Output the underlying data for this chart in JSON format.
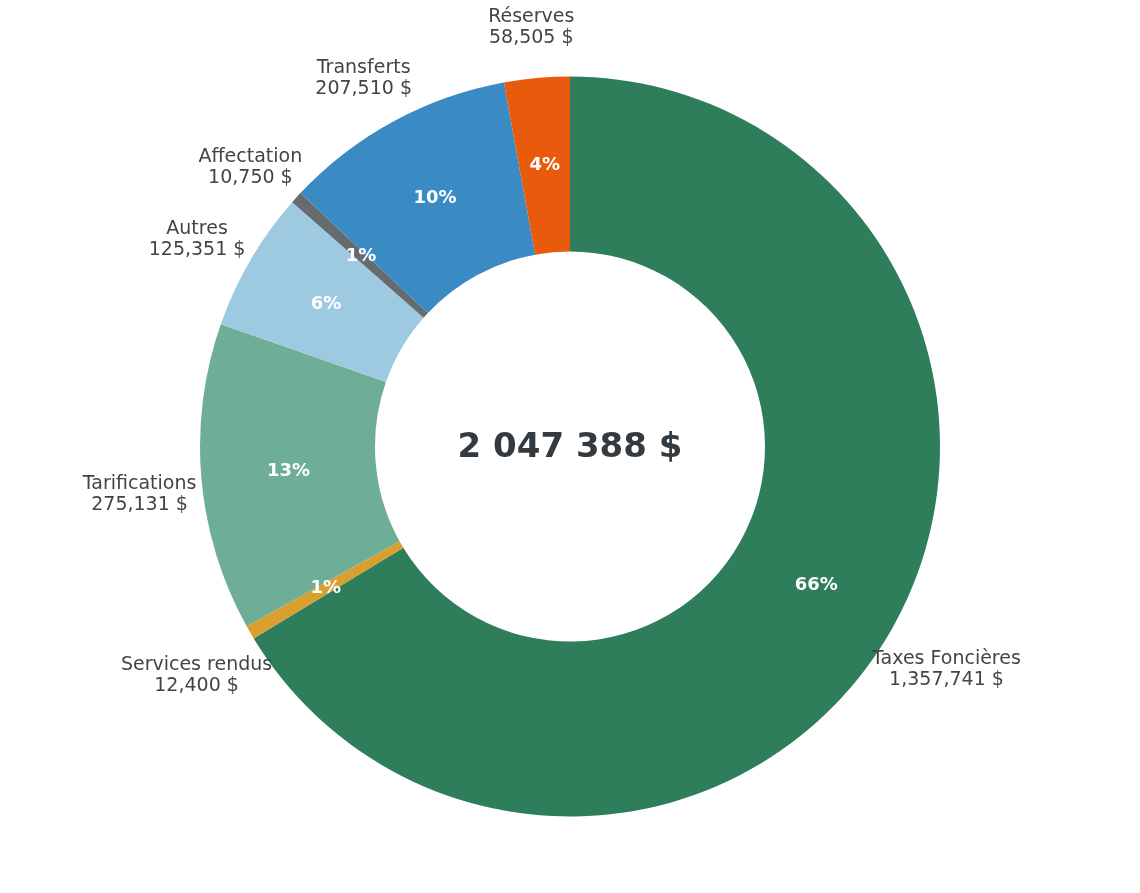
{
  "chart_data": {
    "type": "donut",
    "categories": [
      "Taxes Foncières",
      "Services rendus",
      "Tarifications",
      "Autres",
      "Affectation",
      "Transferts",
      "Réserves"
    ],
    "values": [
      1357741,
      12400,
      275131,
      125351,
      10750,
      207510,
      58505
    ],
    "value_labels": [
      "1,357,741 $",
      "12,400 $",
      "275,131 $",
      "125,351 $",
      "10,750 $",
      "207,510 $",
      "58,505 $"
    ],
    "colors": [
      "#2e7d5b",
      "#d9a030",
      "#6fae96",
      "#9ecae1",
      "#666b70",
      "#3a8ac4",
      "#e85a0c"
    ],
    "annotations": [
      "2 047 388 $",
      {
        "text": "66%",
        "x": "Taxes Foncières"
      },
      {
        "text": "1%",
        "x": "Services rendus"
      },
      {
        "text": "13%",
        "x": "Tarifications"
      },
      {
        "text": "6%",
        "x": "Autres"
      },
      {
        "text": "1%",
        "x": "Affectation"
      },
      {
        "text": "10%",
        "x": "Transferts"
      },
      {
        "text": "4%",
        "x": "Réserves"
      }
    ],
    "legend": false
  }
}
